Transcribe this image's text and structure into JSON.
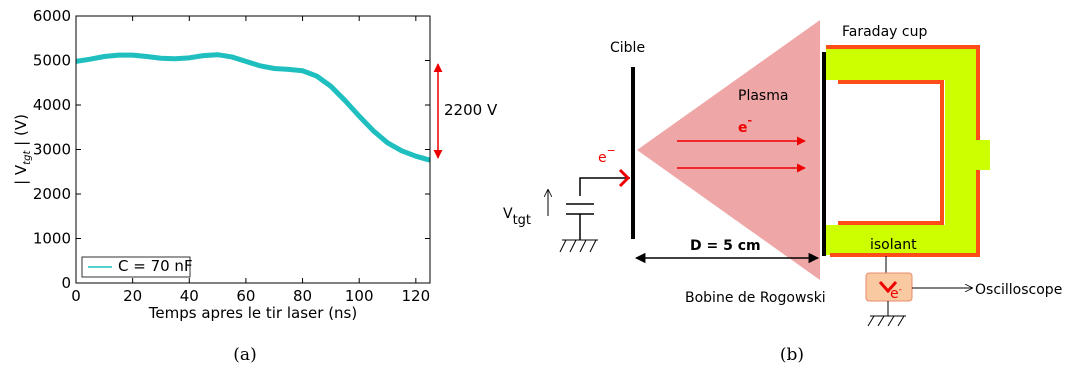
{
  "chart_data": {
    "type": "line",
    "x_label": "Temps apres le tir laser (ns)",
    "y_label": [
      "|  V",
      "tgt",
      "  |  (V)"
    ],
    "x": [
      0,
      5,
      10,
      15,
      20,
      25,
      30,
      35,
      40,
      45,
      50,
      55,
      60,
      65,
      70,
      75,
      80,
      85,
      90,
      95,
      100,
      105,
      110,
      115,
      120,
      125
    ],
    "series": [
      {
        "name": "C = 70 nF",
        "color": "#1fbfbf",
        "values": [
          4980,
          5030,
          5090,
          5120,
          5120,
          5090,
          5050,
          5040,
          5060,
          5110,
          5130,
          5080,
          4980,
          4880,
          4820,
          4800,
          4770,
          4650,
          4420,
          4100,
          3750,
          3420,
          3150,
          2970,
          2850,
          2760
        ]
      }
    ],
    "xlim": [
      0,
      125
    ],
    "xticks": [
      0,
      20,
      40,
      60,
      80,
      100,
      120
    ],
    "ylim": [
      0,
      6000
    ],
    "yticks": [
      0,
      1000,
      2000,
      3000,
      4000,
      5000,
      6000
    ],
    "grid": false,
    "legend": "lower left",
    "annotation": "2200 V"
  },
  "diagram": {
    "target": "Cible",
    "plasma": "Plasma",
    "electron": "e",
    "electron_charge": "-",
    "target_electron": "e",
    "target_electron_charge": "−",
    "cup": "Faraday cup",
    "voltage": "V",
    "voltage_sub": "tgt",
    "distance": "D = 5 cm",
    "insulator": "isolant",
    "coil": "Bobine de Rogowski",
    "coil_electron": "e",
    "coil_electron_charge": "-",
    "scope": "Oscilloscope"
  },
  "captions": [
    "(a)",
    "(b)"
  ]
}
